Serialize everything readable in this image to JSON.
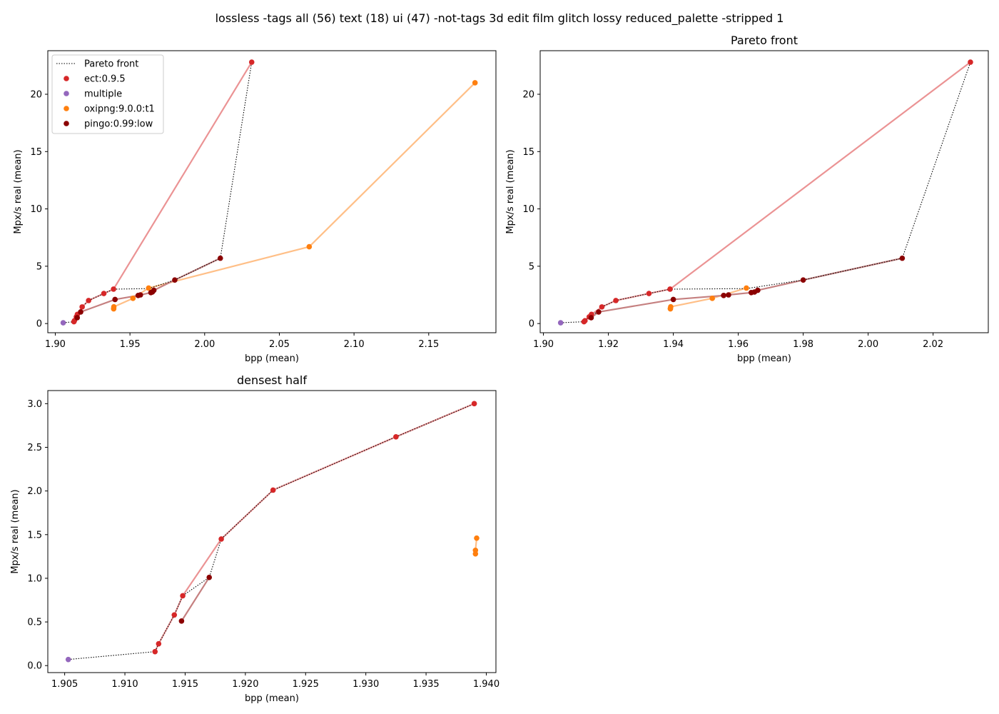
{
  "figure": {
    "suptitle": "lossless -tags all (56) text (18) ui (47) -not-tags 3d edit film glitch lossy reduced_palette -stripped 1"
  },
  "colors": {
    "ect:0.9.5": "#d62728",
    "multiple": "#9467bd",
    "oxipng:9.0.0:t1": "#ff7f0e",
    "pingo:0.99:low": "#8b0000",
    "pareto": "#000000"
  },
  "chart_data": [
    {
      "type": "scatter",
      "title": "",
      "xlabel": "bpp (mean)",
      "ylabel": "Mpx/s real (mean)",
      "xlim": [
        1.895,
        2.195
      ],
      "ylim": [
        -0.8,
        23.8
      ],
      "xticks": [
        "1.90",
        "1.95",
        "2.00",
        "2.05",
        "2.10",
        "2.15"
      ],
      "yticks": [
        "0",
        "5",
        "10",
        "15",
        "20"
      ],
      "legend": {
        "placement": "top-left",
        "entries": [
          "Pareto front",
          "ect:0.9.5",
          "multiple",
          "oxipng:9.0.0:t1",
          "pingo:0.99:low"
        ]
      },
      "pareto": [
        [
          1.9053,
          0.07
        ],
        [
          1.9125,
          0.16
        ],
        [
          1.9128,
          0.25
        ],
        [
          1.9141,
          0.58
        ],
        [
          1.9148,
          0.8
        ],
        [
          1.917,
          1.01
        ],
        [
          1.918,
          1.45
        ],
        [
          1.9223,
          2.01
        ],
        [
          1.9325,
          2.62
        ],
        [
          1.939,
          3.0
        ],
        [
          1.9625,
          3.05
        ],
        [
          1.98,
          3.8
        ],
        [
          2.0105,
          5.7
        ],
        [
          2.0315,
          22.8
        ]
      ],
      "series": [
        {
          "name": "ect:0.9.5",
          "points": [
            [
              1.9125,
              0.16
            ],
            [
              1.9128,
              0.25
            ],
            [
              1.9141,
              0.58
            ],
            [
              1.9148,
              0.8
            ],
            [
              1.918,
              1.45
            ],
            [
              1.9223,
              2.01
            ],
            [
              1.9325,
              2.62
            ],
            [
              1.939,
              3.0
            ],
            [
              2.0315,
              22.8
            ]
          ]
        },
        {
          "name": "multiple",
          "points": [
            [
              1.9053,
              0.07
            ]
          ]
        },
        {
          "name": "oxipng:9.0.0:t1",
          "points": [
            [
              1.9391,
              1.28
            ],
            [
              1.9391,
              1.32
            ],
            [
              1.9392,
              1.46
            ],
            [
              1.952,
              2.2
            ],
            [
              1.9625,
              3.1
            ],
            [
              2.07,
              6.7
            ],
            [
              2.181,
              21.0
            ]
          ]
        },
        {
          "name": "pingo:0.99:low",
          "points": [
            [
              1.9147,
              0.51
            ],
            [
              1.917,
              1.01
            ],
            [
              1.94,
              2.1
            ],
            [
              1.9555,
              2.45
            ],
            [
              1.957,
              2.5
            ],
            [
              1.964,
              2.7
            ],
            [
              1.965,
              2.75
            ],
            [
              1.966,
              2.9
            ],
            [
              1.98,
              3.8
            ],
            [
              2.0105,
              5.7
            ]
          ]
        }
      ]
    },
    {
      "type": "scatter",
      "title": "Pareto front",
      "xlabel": "bpp (mean)",
      "ylabel": "Mpx/s real (mean)",
      "xlim": [
        1.899,
        2.037
      ],
      "ylim": [
        -0.8,
        23.8
      ],
      "xticks": [
        "1.90",
        "1.92",
        "1.94",
        "1.96",
        "1.98",
        "2.00",
        "2.02"
      ],
      "yticks": [
        "0",
        "5",
        "10",
        "15",
        "20"
      ],
      "pareto": [
        [
          1.9053,
          0.07
        ],
        [
          1.9125,
          0.16
        ],
        [
          1.9128,
          0.25
        ],
        [
          1.9141,
          0.58
        ],
        [
          1.9148,
          0.8
        ],
        [
          1.917,
          1.01
        ],
        [
          1.918,
          1.45
        ],
        [
          1.9223,
          2.01
        ],
        [
          1.9325,
          2.62
        ],
        [
          1.939,
          3.0
        ],
        [
          1.9625,
          3.05
        ],
        [
          1.98,
          3.8
        ],
        [
          2.0105,
          5.7
        ],
        [
          2.0315,
          22.8
        ]
      ],
      "series": [
        {
          "name": "ect:0.9.5",
          "points": [
            [
              1.9125,
              0.16
            ],
            [
              1.9128,
              0.25
            ],
            [
              1.9141,
              0.58
            ],
            [
              1.9148,
              0.8
            ],
            [
              1.918,
              1.45
            ],
            [
              1.9223,
              2.01
            ],
            [
              1.9325,
              2.62
            ],
            [
              1.939,
              3.0
            ],
            [
              2.0315,
              22.8
            ]
          ]
        },
        {
          "name": "multiple",
          "points": [
            [
              1.9053,
              0.07
            ]
          ]
        },
        {
          "name": "oxipng:9.0.0:t1",
          "points": [
            [
              1.9391,
              1.28
            ],
            [
              1.9391,
              1.32
            ],
            [
              1.9392,
              1.46
            ],
            [
              1.952,
              2.2
            ],
            [
              1.9625,
              3.1
            ]
          ]
        },
        {
          "name": "pingo:0.99:low",
          "points": [
            [
              1.9147,
              0.51
            ],
            [
              1.917,
              1.01
            ],
            [
              1.94,
              2.1
            ],
            [
              1.9555,
              2.45
            ],
            [
              1.957,
              2.5
            ],
            [
              1.964,
              2.7
            ],
            [
              1.965,
              2.75
            ],
            [
              1.966,
              2.9
            ],
            [
              1.98,
              3.8
            ],
            [
              2.0105,
              5.7
            ]
          ]
        }
      ]
    },
    {
      "type": "scatter",
      "title": "densest half",
      "xlabel": "bpp (mean)",
      "ylabel": "Mpx/s real (mean)",
      "xlim": [
        1.9036,
        1.9408
      ],
      "ylim": [
        -0.08,
        3.15
      ],
      "xticks": [
        "1.905",
        "1.910",
        "1.915",
        "1.920",
        "1.925",
        "1.930",
        "1.935",
        "1.940"
      ],
      "yticks": [
        "0.0",
        "0.5",
        "1.0",
        "1.5",
        "2.0",
        "2.5",
        "3.0"
      ],
      "pareto": [
        [
          1.9053,
          0.07
        ],
        [
          1.9125,
          0.16
        ],
        [
          1.9128,
          0.25
        ],
        [
          1.9141,
          0.58
        ],
        [
          1.9148,
          0.8
        ],
        [
          1.917,
          1.01
        ],
        [
          1.918,
          1.45
        ],
        [
          1.9223,
          2.01
        ],
        [
          1.9325,
          2.62
        ],
        [
          1.939,
          3.0
        ]
      ],
      "series": [
        {
          "name": "ect:0.9.5",
          "points": [
            [
              1.9125,
              0.16
            ],
            [
              1.9128,
              0.25
            ],
            [
              1.9141,
              0.58
            ],
            [
              1.9148,
              0.8
            ],
            [
              1.918,
              1.45
            ],
            [
              1.9223,
              2.01
            ],
            [
              1.9325,
              2.62
            ],
            [
              1.939,
              3.0
            ]
          ]
        },
        {
          "name": "multiple",
          "points": [
            [
              1.9053,
              0.07
            ]
          ]
        },
        {
          "name": "oxipng:9.0.0:t1",
          "points": [
            [
              1.9391,
              1.28
            ],
            [
              1.9391,
              1.32
            ],
            [
              1.9392,
              1.46
            ]
          ]
        },
        {
          "name": "pingo:0.99:low",
          "points": [
            [
              1.9147,
              0.51
            ],
            [
              1.917,
              1.01
            ]
          ]
        }
      ]
    }
  ]
}
